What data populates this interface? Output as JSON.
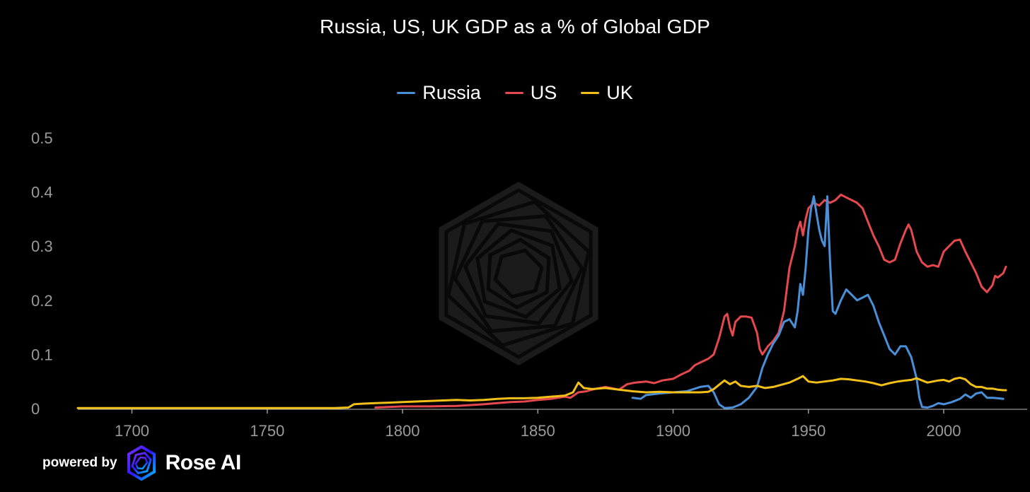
{
  "chart_data": {
    "type": "line",
    "title": "Russia, US, UK GDP as a % of Global GDP",
    "xlabel": "",
    "ylabel": "",
    "xlim": [
      1680,
      2023
    ],
    "ylim": [
      0,
      0.5
    ],
    "x_ticks": [
      1700,
      1750,
      1800,
      1850,
      1900,
      1950,
      2000
    ],
    "y_ticks": [
      0,
      0.1,
      0.2,
      0.3,
      0.4,
      0.5
    ],
    "y_tick_labels": [
      "0",
      "0.1",
      "0.2",
      "0.3",
      "0.4",
      "0.5"
    ],
    "legend_position": "top-center",
    "series": [
      {
        "name": "Russia",
        "color": "#4a90d9",
        "points": [
          [
            1885,
            0.02
          ],
          [
            1888,
            0.018
          ],
          [
            1890,
            0.025
          ],
          [
            1895,
            0.028
          ],
          [
            1900,
            0.03
          ],
          [
            1905,
            0.032
          ],
          [
            1910,
            0.04
          ],
          [
            1913,
            0.042
          ],
          [
            1915,
            0.03
          ],
          [
            1917,
            0.008
          ],
          [
            1919,
            0.001
          ],
          [
            1922,
            0.002
          ],
          [
            1925,
            0.008
          ],
          [
            1928,
            0.02
          ],
          [
            1931,
            0.04
          ],
          [
            1933,
            0.075
          ],
          [
            1935,
            0.1
          ],
          [
            1937,
            0.12
          ],
          [
            1939,
            0.135
          ],
          [
            1941,
            0.16
          ],
          [
            1943,
            0.165
          ],
          [
            1945,
            0.15
          ],
          [
            1946,
            0.18
          ],
          [
            1947,
            0.23
          ],
          [
            1948,
            0.21
          ],
          [
            1949,
            0.26
          ],
          [
            1950,
            0.33
          ],
          [
            1951,
            0.37
          ],
          [
            1952,
            0.392
          ],
          [
            1953,
            0.36
          ],
          [
            1954,
            0.33
          ],
          [
            1955,
            0.31
          ],
          [
            1956,
            0.3
          ],
          [
            1957,
            0.392
          ],
          [
            1958,
            0.27
          ],
          [
            1959,
            0.18
          ],
          [
            1960,
            0.175
          ],
          [
            1962,
            0.2
          ],
          [
            1964,
            0.22
          ],
          [
            1966,
            0.21
          ],
          [
            1968,
            0.2
          ],
          [
            1970,
            0.205
          ],
          [
            1972,
            0.21
          ],
          [
            1974,
            0.19
          ],
          [
            1976,
            0.16
          ],
          [
            1978,
            0.135
          ],
          [
            1980,
            0.11
          ],
          [
            1982,
            0.1
          ],
          [
            1984,
            0.115
          ],
          [
            1986,
            0.115
          ],
          [
            1988,
            0.095
          ],
          [
            1990,
            0.055
          ],
          [
            1991,
            0.02
          ],
          [
            1992,
            0.003
          ],
          [
            1994,
            0.002
          ],
          [
            1996,
            0.005
          ],
          [
            1998,
            0.01
          ],
          [
            2000,
            0.008
          ],
          [
            2003,
            0.012
          ],
          [
            2006,
            0.018
          ],
          [
            2008,
            0.026
          ],
          [
            2010,
            0.02
          ],
          [
            2012,
            0.028
          ],
          [
            2014,
            0.03
          ],
          [
            2016,
            0.02
          ],
          [
            2018,
            0.02
          ],
          [
            2020,
            0.019
          ],
          [
            2022,
            0.018
          ]
        ]
      },
      {
        "name": "US",
        "color": "#e5484d",
        "points": [
          [
            1790,
            0.002
          ],
          [
            1800,
            0.004
          ],
          [
            1810,
            0.004
          ],
          [
            1820,
            0.005
          ],
          [
            1830,
            0.008
          ],
          [
            1835,
            0.01
          ],
          [
            1840,
            0.012
          ],
          [
            1845,
            0.013
          ],
          [
            1850,
            0.016
          ],
          [
            1855,
            0.018
          ],
          [
            1860,
            0.022
          ],
          [
            1862,
            0.02
          ],
          [
            1865,
            0.03
          ],
          [
            1868,
            0.032
          ],
          [
            1870,
            0.035
          ],
          [
            1875,
            0.04
          ],
          [
            1880,
            0.035
          ],
          [
            1883,
            0.045
          ],
          [
            1886,
            0.048
          ],
          [
            1890,
            0.05
          ],
          [
            1893,
            0.047
          ],
          [
            1896,
            0.052
          ],
          [
            1900,
            0.055
          ],
          [
            1903,
            0.063
          ],
          [
            1906,
            0.07
          ],
          [
            1908,
            0.08
          ],
          [
            1910,
            0.085
          ],
          [
            1913,
            0.092
          ],
          [
            1915,
            0.1
          ],
          [
            1916,
            0.115
          ],
          [
            1917,
            0.13
          ],
          [
            1918,
            0.15
          ],
          [
            1919,
            0.17
          ],
          [
            1920,
            0.175
          ],
          [
            1921,
            0.15
          ],
          [
            1922,
            0.135
          ],
          [
            1923,
            0.16
          ],
          [
            1925,
            0.17
          ],
          [
            1927,
            0.17
          ],
          [
            1929,
            0.168
          ],
          [
            1931,
            0.14
          ],
          [
            1932,
            0.11
          ],
          [
            1933,
            0.1
          ],
          [
            1935,
            0.115
          ],
          [
            1937,
            0.125
          ],
          [
            1939,
            0.14
          ],
          [
            1941,
            0.18
          ],
          [
            1943,
            0.26
          ],
          [
            1945,
            0.3
          ],
          [
            1946,
            0.33
          ],
          [
            1947,
            0.345
          ],
          [
            1948,
            0.32
          ],
          [
            1949,
            0.35
          ],
          [
            1950,
            0.37
          ],
          [
            1952,
            0.38
          ],
          [
            1954,
            0.375
          ],
          [
            1956,
            0.385
          ],
          [
            1958,
            0.38
          ],
          [
            1960,
            0.385
          ],
          [
            1962,
            0.395
          ],
          [
            1964,
            0.39
          ],
          [
            1966,
            0.385
          ],
          [
            1968,
            0.38
          ],
          [
            1970,
            0.37
          ],
          [
            1972,
            0.345
          ],
          [
            1974,
            0.32
          ],
          [
            1976,
            0.3
          ],
          [
            1978,
            0.275
          ],
          [
            1980,
            0.27
          ],
          [
            1982,
            0.275
          ],
          [
            1984,
            0.305
          ],
          [
            1986,
            0.33
          ],
          [
            1987,
            0.34
          ],
          [
            1988,
            0.33
          ],
          [
            1990,
            0.29
          ],
          [
            1992,
            0.27
          ],
          [
            1994,
            0.262
          ],
          [
            1996,
            0.265
          ],
          [
            1998,
            0.262
          ],
          [
            2000,
            0.29
          ],
          [
            2002,
            0.3
          ],
          [
            2004,
            0.31
          ],
          [
            2006,
            0.312
          ],
          [
            2008,
            0.29
          ],
          [
            2010,
            0.27
          ],
          [
            2012,
            0.25
          ],
          [
            2014,
            0.225
          ],
          [
            2016,
            0.215
          ],
          [
            2018,
            0.228
          ],
          [
            2019,
            0.245
          ],
          [
            2020,
            0.242
          ],
          [
            2022,
            0.25
          ],
          [
            2023,
            0.262
          ]
        ]
      },
      {
        "name": "UK",
        "color": "#f2c018",
        "points": [
          [
            1680,
            0.001
          ],
          [
            1700,
            0.001
          ],
          [
            1720,
            0.001
          ],
          [
            1740,
            0.001
          ],
          [
            1760,
            0.001
          ],
          [
            1775,
            0.001
          ],
          [
            1780,
            0.002
          ],
          [
            1782,
            0.008
          ],
          [
            1785,
            0.009
          ],
          [
            1790,
            0.01
          ],
          [
            1795,
            0.011
          ],
          [
            1800,
            0.012
          ],
          [
            1805,
            0.013
          ],
          [
            1810,
            0.014
          ],
          [
            1815,
            0.015
          ],
          [
            1820,
            0.016
          ],
          [
            1825,
            0.015
          ],
          [
            1830,
            0.016
          ],
          [
            1835,
            0.018
          ],
          [
            1840,
            0.019
          ],
          [
            1845,
            0.019
          ],
          [
            1850,
            0.02
          ],
          [
            1855,
            0.022
          ],
          [
            1860,
            0.024
          ],
          [
            1863,
            0.03
          ],
          [
            1865,
            0.048
          ],
          [
            1867,
            0.038
          ],
          [
            1870,
            0.036
          ],
          [
            1875,
            0.038
          ],
          [
            1880,
            0.035
          ],
          [
            1885,
            0.032
          ],
          [
            1890,
            0.03
          ],
          [
            1895,
            0.031
          ],
          [
            1900,
            0.03
          ],
          [
            1905,
            0.03
          ],
          [
            1910,
            0.03
          ],
          [
            1913,
            0.031
          ],
          [
            1915,
            0.036
          ],
          [
            1917,
            0.044
          ],
          [
            1919,
            0.052
          ],
          [
            1921,
            0.045
          ],
          [
            1923,
            0.05
          ],
          [
            1925,
            0.042
          ],
          [
            1928,
            0.04
          ],
          [
            1931,
            0.042
          ],
          [
            1934,
            0.038
          ],
          [
            1937,
            0.04
          ],
          [
            1940,
            0.044
          ],
          [
            1943,
            0.048
          ],
          [
            1946,
            0.055
          ],
          [
            1948,
            0.06
          ],
          [
            1950,
            0.05
          ],
          [
            1953,
            0.048
          ],
          [
            1956,
            0.05
          ],
          [
            1959,
            0.052
          ],
          [
            1962,
            0.055
          ],
          [
            1965,
            0.054
          ],
          [
            1968,
            0.052
          ],
          [
            1971,
            0.05
          ],
          [
            1974,
            0.047
          ],
          [
            1977,
            0.043
          ],
          [
            1980,
            0.047
          ],
          [
            1983,
            0.05
          ],
          [
            1986,
            0.052
          ],
          [
            1988,
            0.053
          ],
          [
            1990,
            0.056
          ],
          [
            1992,
            0.052
          ],
          [
            1994,
            0.048
          ],
          [
            1996,
            0.05
          ],
          [
            1998,
            0.052
          ],
          [
            2000,
            0.053
          ],
          [
            2002,
            0.05
          ],
          [
            2004,
            0.055
          ],
          [
            2006,
            0.057
          ],
          [
            2008,
            0.054
          ],
          [
            2010,
            0.045
          ],
          [
            2012,
            0.04
          ],
          [
            2014,
            0.04
          ],
          [
            2016,
            0.037
          ],
          [
            2018,
            0.037
          ],
          [
            2020,
            0.035
          ],
          [
            2022,
            0.034
          ],
          [
            2023,
            0.034
          ]
        ]
      }
    ]
  },
  "branding": {
    "powered_by": "powered by",
    "brand_name": "Rose AI",
    "logo_icon": "rose-ai-logo-icon",
    "accent_colors": [
      "#2a1aff",
      "#7b2ff7",
      "#00c2ff"
    ]
  }
}
